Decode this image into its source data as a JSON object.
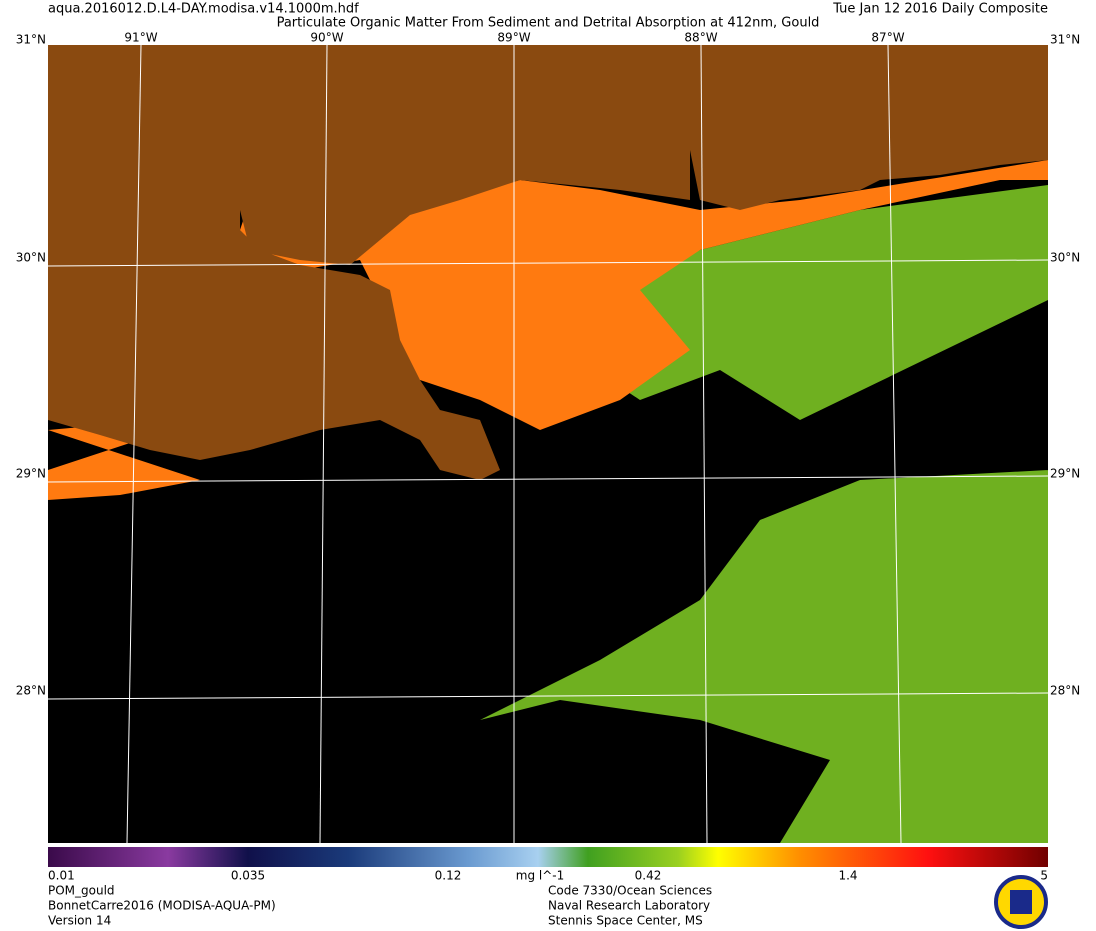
{
  "header": {
    "file": "aqua.2016012.D.L4-DAY.modisa.v14.1000m.hdf",
    "title": "Particulate Organic Matter From Sediment and Detrital Absorption at 412nm, Gould",
    "date": "Tue Jan 12 2016 Daily Composite"
  },
  "map": {
    "lat_labels": [
      "31°N",
      "30°N",
      "29°N",
      "28°N"
    ],
    "lon_labels": [
      "91°W",
      "90°W",
      "89°W",
      "88°W",
      "87°W"
    ]
  },
  "colorbar": {
    "ticks": [
      "0.01",
      "0.035",
      "0.12",
      "0.42",
      "1.4",
      "5"
    ],
    "unit": "mg l^-1"
  },
  "footer": {
    "left": [
      "POM_gould",
      "BonnetCarre2016 (MODISA-AQUA-PM)",
      "Version 14"
    ],
    "right": [
      "Code 7330/Ocean Sciences",
      "Naval Research Laboratory",
      "Stennis Space Center, MS"
    ]
  }
}
